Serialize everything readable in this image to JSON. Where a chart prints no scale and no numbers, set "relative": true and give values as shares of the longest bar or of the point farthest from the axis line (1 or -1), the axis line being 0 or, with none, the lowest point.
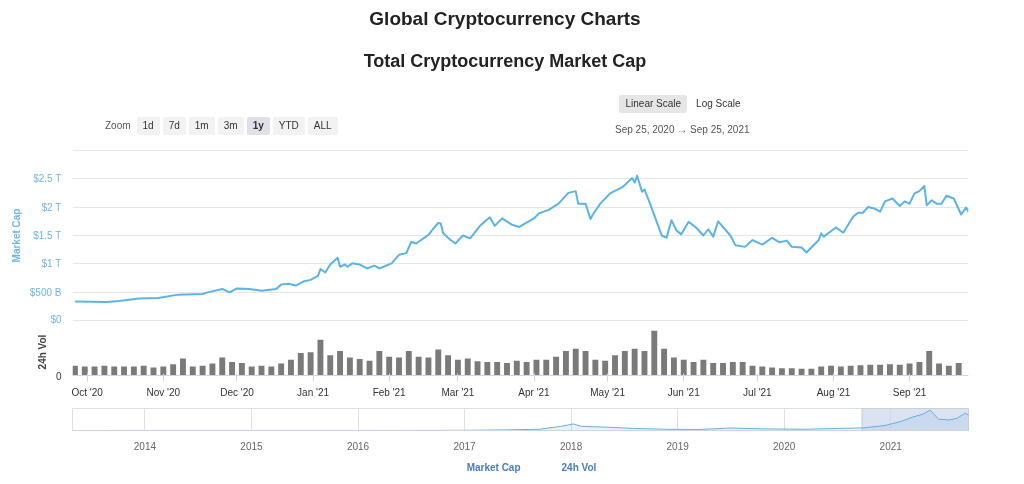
{
  "chart_data": [
    {
      "type": "line",
      "title": "Global Cryptocurrency Charts",
      "subtitle": "Total Cryptocurrency Market Cap",
      "ylabel": "Market Cap",
      "annotations": [
        "Zoom",
        "1d",
        "7d",
        "1m",
        "3m",
        "1y",
        "YTD",
        "ALL",
        "Linear Scale",
        "Log Scale",
        "Sep 25, 2020 → Sep 25, 2021"
      ],
      "x": [
        "2020-09-26",
        "2020-10-09",
        "2020-10-14",
        "2020-10-22",
        "2020-10-30",
        "2020-11-07",
        "2020-11-17",
        "2020-11-19",
        "2020-11-25",
        "2020-11-28",
        "2020-12-01",
        "2020-12-06",
        "2020-12-11",
        "2020-12-17",
        "2020-12-19",
        "2020-12-22",
        "2020-12-25",
        "2020-12-28",
        "2020-12-31",
        "2021-01-03",
        "2021-01-04",
        "2021-01-06",
        "2021-01-08",
        "2021-01-11",
        "2021-01-12",
        "2021-01-14",
        "2021-01-15",
        "2021-01-17",
        "2021-01-20",
        "2021-01-23",
        "2021-01-26",
        "2021-01-28",
        "2021-02-02",
        "2021-02-05",
        "2021-02-08",
        "2021-02-10",
        "2021-02-12",
        "2021-02-17",
        "2021-02-19",
        "2021-02-21",
        "2021-02-22",
        "2021-02-23",
        "2021-02-26",
        "2021-02-28",
        "2021-03-03",
        "2021-03-06",
        "2021-03-10",
        "2021-03-14",
        "2021-03-16",
        "2021-03-19",
        "2021-03-23",
        "2021-03-26",
        "2021-04-01",
        "2021-04-03",
        "2021-04-07",
        "2021-04-11",
        "2021-04-15",
        "2021-04-18",
        "2021-04-19",
        "2021-04-22",
        "2021-04-24",
        "2021-04-25",
        "2021-04-28",
        "2021-05-02",
        "2021-05-07",
        "2021-05-11",
        "2021-05-12",
        "2021-05-13",
        "2021-05-15",
        "2021-05-16",
        "2021-05-18",
        "2021-05-21",
        "2021-05-23",
        "2021-05-25",
        "2021-05-27",
        "2021-05-29",
        "2021-05-31",
        "2021-06-03",
        "2021-06-06",
        "2021-06-09",
        "2021-06-11",
        "2021-06-13",
        "2021-06-15",
        "2021-06-20",
        "2021-06-22",
        "2021-06-26",
        "2021-06-29",
        "2021-07-03",
        "2021-07-07",
        "2021-07-10",
        "2021-07-13",
        "2021-07-15",
        "2021-07-19",
        "2021-07-21",
        "2021-07-26",
        "2021-07-27",
        "2021-07-28",
        "2021-08-02",
        "2021-08-05",
        "2021-08-09",
        "2021-08-11",
        "2021-08-13",
        "2021-08-15",
        "2021-08-18",
        "2021-08-20",
        "2021-08-22",
        "2021-08-25",
        "2021-08-28",
        "2021-08-30",
        "2021-09-01",
        "2021-09-03",
        "2021-09-05",
        "2021-09-07",
        "2021-09-08",
        "2021-09-10",
        "2021-09-12",
        "2021-09-14",
        "2021-09-16",
        "2021-09-19",
        "2021-09-22",
        "2021-09-24",
        "2021-09-25"
      ],
      "series": [
        {
          "name": "Market Cap",
          "color": "#5cb3e6",
          "values": [
            340000000000.0,
            330000000000.0,
            350000000000.0,
            390000000000.0,
            400000000000.0,
            460000000000.0,
            470000000000.0,
            500000000000.0,
            560000000000.0,
            500000000000.0,
            570000000000.0,
            560000000000.0,
            530000000000.0,
            560000000000.0,
            640000000000.0,
            650000000000.0,
            620000000000.0,
            690000000000.0,
            720000000000.0,
            790000000000.0,
            910000000000.0,
            850000000000.0,
            990000000000.0,
            1110000000000.0,
            950000000000.0,
            990000000000.0,
            950000000000.0,
            1010000000000.0,
            990000000000.0,
            920000000000.0,
            970000000000.0,
            920000000000.0,
            1010000000000.0,
            1160000000000.0,
            1190000000000.0,
            1390000000000.0,
            1360000000000.0,
            1510000000000.0,
            1620000000000.0,
            1720000000000.0,
            1710000000000.0,
            1540000000000.0,
            1420000000000.0,
            1360000000000.0,
            1500000000000.0,
            1450000000000.0,
            1670000000000.0,
            1820000000000.0,
            1670000000000.0,
            1800000000000.0,
            1690000000000.0,
            1650000000000.0,
            1800000000000.0,
            1890000000000.0,
            1950000000000.0,
            2060000000000.0,
            2250000000000.0,
            2280000000000.0,
            2060000000000.0,
            2060000000000.0,
            1790000000000.0,
            1870000000000.0,
            2060000000000.0,
            2240000000000.0,
            2350000000000.0,
            2510000000000.0,
            2430000000000.0,
            2550000000000.0,
            2270000000000.0,
            2310000000000.0,
            2090000000000.0,
            1740000000000.0,
            1500000000000.0,
            1460000000000.0,
            1770000000000.0,
            1590000000000.0,
            1520000000000.0,
            1740000000000.0,
            1640000000000.0,
            1500000000000.0,
            1610000000000.0,
            1480000000000.0,
            1750000000000.0,
            1500000000000.0,
            1330000000000.0,
            1300000000000.0,
            1420000000000.0,
            1340000000000.0,
            1460000000000.0,
            1380000000000.0,
            1410000000000.0,
            1300000000000.0,
            1290000000000.0,
            1200000000000.0,
            1420000000000.0,
            1540000000000.0,
            1480000000000.0,
            1640000000000.0,
            1550000000000.0,
            1830000000000.0,
            1900000000000.0,
            1900000000000.0,
            2000000000000.0,
            1970000000000.0,
            1920000000000.0,
            2100000000000.0,
            2150000000000.0,
            2020000000000.0,
            2100000000000.0,
            2060000000000.0,
            2240000000000.0,
            2280000000000.0,
            2370000000000.0,
            2030000000000.0,
            2120000000000.0,
            2060000000000.0,
            2060000000000.0,
            2200000000000.0,
            2150000000000.0,
            1870000000000.0,
            1990000000000.0,
            1920000000000.0
          ]
        }
      ],
      "xlim": [
        "2020-09-25",
        "2021-09-25"
      ],
      "ylim": [
        0,
        3000000000000.0
      ],
      "yticks": [
        {
          "value": 0,
          "label": "$0"
        },
        {
          "value": 500000000000.0,
          "label": "$500 B"
        },
        {
          "value": 1000000000000.0,
          "label": "$1 T"
        },
        {
          "value": 1500000000000.0,
          "label": "$1.5 T"
        },
        {
          "value": 2000000000000.0,
          "label": "$2 T"
        },
        {
          "value": 2500000000000.0,
          "label": "$2.5 T"
        },
        {
          "value": 3000000000000.0,
          "label": null
        }
      ],
      "grid": "y",
      "legend": "bottom",
      "tick_labels": "y"
    },
    {
      "type": "bar",
      "relative": true,
      "ylabel": "24h Vol",
      "annotations": [
        "0"
      ],
      "x": [
        "2020-09-26",
        "2020-09-30",
        "2020-10-04",
        "2020-10-08",
        "2020-10-12",
        "2020-10-16",
        "2020-10-20",
        "2020-10-24",
        "2020-10-28",
        "2020-11-01",
        "2020-11-05",
        "2020-11-09",
        "2020-11-13",
        "2020-11-17",
        "2020-11-21",
        "2020-11-25",
        "2020-11-29",
        "2020-12-03",
        "2020-12-07",
        "2020-12-11",
        "2020-12-15",
        "2020-12-19",
        "2020-12-23",
        "2020-12-27",
        "2020-12-31",
        "2021-01-04",
        "2021-01-08",
        "2021-01-12",
        "2021-01-16",
        "2021-01-20",
        "2021-01-24",
        "2021-01-28",
        "2021-02-01",
        "2021-02-05",
        "2021-02-09",
        "2021-02-13",
        "2021-02-17",
        "2021-02-21",
        "2021-02-25",
        "2021-03-01",
        "2021-03-05",
        "2021-03-09",
        "2021-03-13",
        "2021-03-17",
        "2021-03-21",
        "2021-03-25",
        "2021-03-29",
        "2021-04-02",
        "2021-04-06",
        "2021-04-10",
        "2021-04-14",
        "2021-04-18",
        "2021-04-22",
        "2021-04-26",
        "2021-04-30",
        "2021-05-04",
        "2021-05-08",
        "2021-05-12",
        "2021-05-16",
        "2021-05-20",
        "2021-05-24",
        "2021-05-28",
        "2021-06-01",
        "2021-06-05",
        "2021-06-09",
        "2021-06-13",
        "2021-06-17",
        "2021-06-21",
        "2021-06-25",
        "2021-06-29",
        "2021-07-03",
        "2021-07-07",
        "2021-07-11",
        "2021-07-15",
        "2021-07-19",
        "2021-07-23",
        "2021-07-27",
        "2021-07-31",
        "2021-08-04",
        "2021-08-08",
        "2021-08-12",
        "2021-08-16",
        "2021-08-20",
        "2021-08-24",
        "2021-08-28",
        "2021-09-01",
        "2021-09-05",
        "2021-09-09",
        "2021-09-13",
        "2021-09-17",
        "2021-09-21"
      ],
      "series": [
        {
          "name": "24h Vol",
          "color": "#7a7a7a",
          "values": [
            0.22,
            0.2,
            0.2,
            0.22,
            0.2,
            0.2,
            0.2,
            0.22,
            0.18,
            0.2,
            0.25,
            0.38,
            0.2,
            0.22,
            0.27,
            0.4,
            0.3,
            0.28,
            0.2,
            0.22,
            0.2,
            0.27,
            0.35,
            0.5,
            0.52,
            0.8,
            0.45,
            0.55,
            0.4,
            0.37,
            0.33,
            0.55,
            0.42,
            0.4,
            0.55,
            0.42,
            0.4,
            0.58,
            0.45,
            0.35,
            0.38,
            0.32,
            0.3,
            0.3,
            0.28,
            0.33,
            0.3,
            0.35,
            0.35,
            0.42,
            0.55,
            0.6,
            0.55,
            0.35,
            0.33,
            0.45,
            0.55,
            0.6,
            0.55,
            1.0,
            0.6,
            0.4,
            0.35,
            0.3,
            0.35,
            0.28,
            0.28,
            0.3,
            0.3,
            0.22,
            0.2,
            0.18,
            0.16,
            0.16,
            0.15,
            0.15,
            0.2,
            0.22,
            0.2,
            0.22,
            0.23,
            0.24,
            0.24,
            0.25,
            0.24,
            0.27,
            0.3,
            0.55,
            0.27,
            0.22,
            0.28
          ]
        }
      ],
      "xlim": [
        "2020-09-25",
        "2021-09-25"
      ],
      "xticks": [
        {
          "value": "2020-10-01",
          "label": "Oct '20"
        },
        {
          "value": "2020-11-01",
          "label": "Nov '20"
        },
        {
          "value": "2020-12-01",
          "label": "Dec '20"
        },
        {
          "value": "2021-01-01",
          "label": "Jan '21"
        },
        {
          "value": "2021-02-01",
          "label": "Feb '21"
        },
        {
          "value": "2021-03-01",
          "label": "Mar '21"
        },
        {
          "value": "2021-04-01",
          "label": "Apr '21"
        },
        {
          "value": "2021-05-01",
          "label": "May '21"
        },
        {
          "value": "2021-06-01",
          "label": "Jun '21"
        },
        {
          "value": "2021-07-01",
          "label": "Jul '21"
        },
        {
          "value": "2021-08-01",
          "label": "Aug '21"
        },
        {
          "value": "2021-09-01",
          "label": "Sep '21"
        }
      ],
      "tick_labels": "x",
      "legend": "bottom"
    },
    {
      "type": "area",
      "relative": true,
      "x": [
        2013.32,
        2014,
        2015,
        2016,
        2017,
        2017.4,
        2017.7,
        2017.9,
        2018.02,
        2018.1,
        2018.3,
        2018.6,
        2018.9,
        2019.2,
        2019.5,
        2019.8,
        2020.2,
        2020.5,
        2020.75,
        2020.95,
        2021.1,
        2021.2,
        2021.3,
        2021.37,
        2021.45,
        2021.55,
        2021.62,
        2021.7,
        2021.73
      ],
      "series": [
        {
          "color": "#6aaee0",
          "values": [
            0,
            0.003,
            0.002,
            0.003,
            0.007,
            0.03,
            0.06,
            0.2,
            0.32,
            0.2,
            0.17,
            0.1,
            0.06,
            0.05,
            0.12,
            0.08,
            0.06,
            0.1,
            0.13,
            0.25,
            0.45,
            0.65,
            0.8,
            1.0,
            0.55,
            0.52,
            0.6,
            0.85,
            0.75
          ]
        }
      ],
      "xlim": [
        2013.32,
        2021.73
      ],
      "xticks": [
        2014,
        2015,
        2016,
        2017,
        2018,
        2019,
        2020,
        2021
      ],
      "bands": [
        {
          "axis": "x",
          "from": 2020.73,
          "to": 2021.73,
          "color": "#ccd6eb"
        }
      ],
      "grid": "x",
      "tick_labels": "x"
    }
  ]
}
